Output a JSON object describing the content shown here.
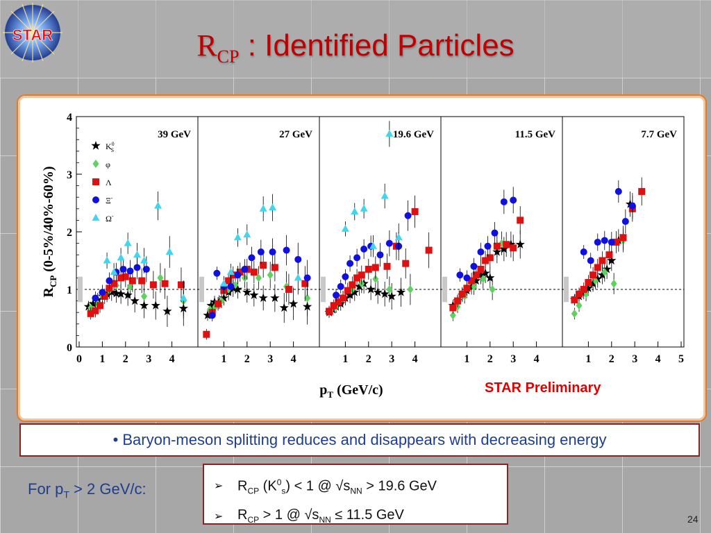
{
  "slide": {
    "title_main": "R",
    "title_sub": "CP",
    "title_rest": " : Identified Particles",
    "logo_text": "STAR",
    "preliminary_label": "STAR Preliminary",
    "bullet": "• Baryon-meson splitting reduces and disappears with decreasing energy",
    "for_pt_prefix": "For p",
    "for_pt_sub": "T",
    "for_pt_suffix": " > 2 GeV/c:",
    "conditions": [
      {
        "arrow": "➢",
        "r": "R",
        "r_sub": "CP",
        "text_a": " (K",
        "k_sup": "0",
        "k_sub": "s",
        "text_b": ") < 1 @ √s",
        "s_sub": "NN",
        "text_c": " > 19.6 GeV"
      },
      {
        "arrow": "➢",
        "r": "R",
        "r_sub": "CP",
        "text_a": " > 1 @ √s",
        "s_sub": "NN",
        "text_c": " ≤ 11.5 GeV"
      }
    ],
    "page_number": "24"
  },
  "chart_data": {
    "type": "scatter",
    "ylabel": "R",
    "ylabel_sub": "CP",
    "ylabel_rest": " (0-5%/40%-60%)",
    "xlabel": "p",
    "xlabel_sub": "T",
    "xlabel_rest": " (GeV/c)",
    "ylim": [
      0,
      4
    ],
    "y_ticks": [
      "0",
      "1",
      "2",
      "3",
      "4"
    ],
    "reference_line": 1,
    "legend": [
      {
        "name": "K",
        "sup": "0",
        "sub": "S",
        "color": "#000000",
        "marker": "star"
      },
      {
        "name": "φ",
        "color": "#5ed15e",
        "marker": "diamond"
      },
      {
        "name": "Λ",
        "color": "#e01010",
        "marker": "square"
      },
      {
        "name": "Ξ",
        "sup": "-",
        "color": "#1010e0",
        "marker": "circle"
      },
      {
        "name": "Ω",
        "sup": "-",
        "color": "#3fd6f0",
        "marker": "triangle"
      }
    ],
    "panels": [
      {
        "energy": "39 GeV",
        "xlim": [
          0,
          5
        ],
        "x_ticks": [
          "0",
          "1",
          "2",
          "3",
          "4"
        ],
        "series": {
          "K0s": [
            [
              0.4,
              0.7
            ],
            [
              0.6,
              0.75
            ],
            [
              0.8,
              0.82
            ],
            [
              1.0,
              0.88
            ],
            [
              1.2,
              0.92
            ],
            [
              1.4,
              0.95
            ],
            [
              1.6,
              0.93
            ],
            [
              1.8,
              0.92
            ],
            [
              2.1,
              0.9
            ],
            [
              2.4,
              0.8
            ],
            [
              2.8,
              0.72
            ],
            [
              3.3,
              0.72
            ],
            [
              3.8,
              0.62
            ],
            [
              4.5,
              0.67
            ]
          ],
          "phi": [
            [
              0.5,
              0.68
            ],
            [
              0.8,
              0.75
            ],
            [
              1.0,
              0.88
            ],
            [
              1.3,
              0.98
            ],
            [
              1.6,
              1.07
            ],
            [
              2.2,
              1.05
            ],
            [
              2.8,
              0.88
            ],
            [
              3.5,
              1.2
            ],
            [
              4.5,
              0.8
            ]
          ],
          "Lambda": [
            [
              0.5,
              0.58
            ],
            [
              0.7,
              0.63
            ],
            [
              0.9,
              0.72
            ],
            [
              1.1,
              0.88
            ],
            [
              1.3,
              1.02
            ],
            [
              1.5,
              1.1
            ],
            [
              1.8,
              1.2
            ],
            [
              2.0,
              1.22
            ],
            [
              2.3,
              1.15
            ],
            [
              2.7,
              1.15
            ],
            [
              3.2,
              1.08
            ],
            [
              3.7,
              1.1
            ],
            [
              4.4,
              1.08
            ]
          ],
          "Xi": [
            [
              0.7,
              0.85
            ],
            [
              1.0,
              0.95
            ],
            [
              1.3,
              1.15
            ],
            [
              1.6,
              1.3
            ],
            [
              1.9,
              1.35
            ],
            [
              2.2,
              1.32
            ],
            [
              2.5,
              1.38
            ],
            [
              2.9,
              1.35
            ]
          ],
          "Omega": [
            [
              1.2,
              1.5
            ],
            [
              1.5,
              1.3
            ],
            [
              1.8,
              1.55
            ],
            [
              2.1,
              1.8
            ],
            [
              2.5,
              1.6
            ],
            [
              2.8,
              1.5
            ],
            [
              3.4,
              2.45
            ],
            [
              3.9,
              1.65
            ],
            [
              4.5,
              0.85
            ]
          ]
        }
      },
      {
        "energy": "27 GeV",
        "xlim": [
          0,
          5
        ],
        "x_ticks": [
          "1",
          "2",
          "3",
          "4"
        ],
        "series": {
          "K0s": [
            [
              0.3,
              0.55
            ],
            [
              0.45,
              0.72
            ],
            [
              0.6,
              0.78
            ],
            [
              0.8,
              0.78
            ],
            [
              1.0,
              0.85
            ],
            [
              1.2,
              0.95
            ],
            [
              1.4,
              1.02
            ],
            [
              1.6,
              1.0
            ],
            [
              2.0,
              0.95
            ],
            [
              2.3,
              0.9
            ],
            [
              2.7,
              0.85
            ],
            [
              3.2,
              0.85
            ],
            [
              3.6,
              0.68
            ],
            [
              4.0,
              0.75
            ],
            [
              4.6,
              0.7
            ]
          ],
          "phi": [
            [
              0.4,
              0.65
            ],
            [
              0.6,
              0.68
            ],
            [
              0.9,
              0.8
            ],
            [
              1.2,
              1.0
            ],
            [
              1.5,
              1.08
            ],
            [
              1.9,
              1.2
            ],
            [
              2.5,
              1.2
            ],
            [
              3.0,
              1.25
            ],
            [
              3.7,
              1.05
            ],
            [
              4.6,
              0.85
            ]
          ],
          "Lambda": [
            [
              0.25,
              0.22
            ],
            [
              0.5,
              0.6
            ],
            [
              0.75,
              0.75
            ],
            [
              1.0,
              0.98
            ],
            [
              1.2,
              1.15
            ],
            [
              1.4,
              1.25
            ],
            [
              1.7,
              1.3
            ],
            [
              2.0,
              1.35
            ],
            [
              2.3,
              1.3
            ],
            [
              2.7,
              1.42
            ],
            [
              3.2,
              1.38
            ],
            [
              3.8,
              1.0
            ],
            [
              4.5,
              1.1
            ]
          ],
          "Xi": [
            [
              0.5,
              0.55
            ],
            [
              0.7,
              1.28
            ],
            [
              1.0,
              1.05
            ],
            [
              1.3,
              1.05
            ],
            [
              1.6,
              1.25
            ],
            [
              1.9,
              1.35
            ],
            [
              2.2,
              1.55
            ],
            [
              2.6,
              1.65
            ],
            [
              3.1,
              1.65
            ],
            [
              3.7,
              1.68
            ],
            [
              4.2,
              1.52
            ],
            [
              4.6,
              1.2
            ]
          ],
          "Omega": [
            [
              1.0,
              1.1
            ],
            [
              1.3,
              1.3
            ],
            [
              1.6,
              1.9
            ],
            [
              2.0,
              1.95
            ],
            [
              2.7,
              2.4
            ],
            [
              3.1,
              2.42
            ],
            [
              4.2,
              1.2
            ]
          ]
        }
      },
      {
        "energy": "19.6 GeV",
        "xlim": [
          0,
          5
        ],
        "x_ticks": [
          "1",
          "2",
          "3",
          "4"
        ],
        "series": {
          "K0s": [
            [
              0.3,
              0.6
            ],
            [
              0.45,
              0.65
            ],
            [
              0.6,
              0.7
            ],
            [
              0.8,
              0.75
            ],
            [
              1.0,
              0.85
            ],
            [
              1.2,
              0.9
            ],
            [
              1.4,
              0.95
            ],
            [
              1.6,
              1.05
            ],
            [
              1.8,
              1.1
            ],
            [
              2.1,
              1.0
            ],
            [
              2.4,
              0.95
            ],
            [
              2.7,
              0.92
            ],
            [
              3.0,
              0.88
            ],
            [
              3.4,
              0.95
            ]
          ],
          "phi": [
            [
              0.4,
              0.65
            ],
            [
              0.6,
              0.7
            ],
            [
              0.9,
              0.85
            ],
            [
              1.3,
              1.0
            ],
            [
              1.7,
              1.1
            ],
            [
              2.3,
              1.18
            ],
            [
              2.9,
              1.0
            ],
            [
              3.8,
              1.0
            ]
          ],
          "Lambda": [
            [
              0.3,
              0.62
            ],
            [
              0.5,
              0.72
            ],
            [
              0.7,
              0.78
            ],
            [
              0.9,
              0.85
            ],
            [
              1.1,
              0.98
            ],
            [
              1.3,
              1.08
            ],
            [
              1.5,
              1.2
            ],
            [
              1.7,
              1.25
            ],
            [
              2.0,
              1.35
            ],
            [
              2.3,
              1.38
            ],
            [
              2.8,
              1.4
            ],
            [
              3.2,
              1.75
            ],
            [
              3.6,
              1.45
            ],
            [
              4.0,
              2.35
            ],
            [
              4.6,
              1.68
            ]
          ],
          "Xi": [
            [
              0.6,
              0.9
            ],
            [
              0.8,
              1.05
            ],
            [
              1.0,
              1.22
            ],
            [
              1.2,
              1.45
            ],
            [
              1.5,
              1.55
            ],
            [
              1.8,
              1.7
            ],
            [
              2.1,
              1.75
            ],
            [
              2.5,
              1.6
            ],
            [
              2.9,
              1.8
            ],
            [
              3.3,
              1.75
            ],
            [
              3.7,
              2.28
            ]
          ],
          "Omega": [
            [
              1.0,
              2.05
            ],
            [
              1.4,
              2.35
            ],
            [
              1.8,
              2.4
            ],
            [
              2.2,
              1.75
            ],
            [
              2.7,
              2.62
            ],
            [
              2.9,
              3.7
            ],
            [
              3.3,
              1.9
            ]
          ]
        }
      },
      {
        "energy": "11.5 GeV",
        "xlim": [
          0,
          5
        ],
        "x_ticks": [
          "1",
          "2",
          "3",
          "4"
        ],
        "series": {
          "K0s": [
            [
              0.4,
              0.72
            ],
            [
              0.6,
              0.8
            ],
            [
              0.8,
              0.9
            ],
            [
              1.0,
              0.98
            ],
            [
              1.2,
              1.05
            ],
            [
              1.4,
              1.15
            ],
            [
              1.6,
              1.25
            ],
            [
              1.8,
              1.28
            ],
            [
              2.0,
              1.2
            ],
            [
              2.3,
              1.65
            ],
            [
              2.6,
              1.7
            ],
            [
              2.9,
              1.78
            ],
            [
              3.3,
              1.78
            ]
          ],
          "phi": [
            [
              0.4,
              0.55
            ],
            [
              0.6,
              0.7
            ],
            [
              0.9,
              0.88
            ],
            [
              1.3,
              1.05
            ],
            [
              1.7,
              1.18
            ],
            [
              2.1,
              1.0
            ],
            [
              2.5,
              1.8
            ]
          ],
          "Lambda": [
            [
              0.4,
              0.68
            ],
            [
              0.6,
              0.8
            ],
            [
              0.8,
              0.92
            ],
            [
              1.0,
              1.02
            ],
            [
              1.2,
              1.15
            ],
            [
              1.4,
              1.25
            ],
            [
              1.6,
              1.35
            ],
            [
              1.8,
              1.5
            ],
            [
              2.0,
              1.55
            ],
            [
              2.3,
              1.75
            ],
            [
              2.7,
              1.78
            ],
            [
              3.0,
              1.72
            ],
            [
              3.3,
              2.2
            ]
          ],
          "Xi": [
            [
              0.7,
              1.25
            ],
            [
              1.0,
              1.2
            ],
            [
              1.3,
              1.4
            ],
            [
              1.6,
              1.65
            ],
            [
              1.9,
              1.75
            ],
            [
              2.2,
              1.98
            ],
            [
              2.6,
              2.52
            ],
            [
              3.0,
              2.55
            ]
          ],
          "Omega": []
        }
      },
      {
        "energy": "7.7 GeV",
        "xlim": [
          0,
          5
        ],
        "x_ticks": [
          "1",
          "2",
          "3",
          "4",
          "5"
        ],
        "series": {
          "K0s": [
            [
              0.4,
              0.82
            ],
            [
              0.6,
              0.88
            ],
            [
              0.8,
              0.95
            ],
            [
              1.0,
              1.02
            ],
            [
              1.2,
              1.1
            ],
            [
              1.4,
              1.18
            ],
            [
              1.6,
              1.25
            ],
            [
              1.8,
              1.35
            ],
            [
              2.0,
              1.5
            ],
            [
              2.3,
              1.85
            ],
            [
              2.8,
              2.48
            ]
          ],
          "phi": [
            [
              0.4,
              0.58
            ],
            [
              0.6,
              0.72
            ],
            [
              0.9,
              0.92
            ],
            [
              1.3,
              1.15
            ],
            [
              1.7,
              1.3
            ],
            [
              2.1,
              1.1
            ],
            [
              2.5,
              1.85
            ]
          ],
          "Lambda": [
            [
              0.4,
              0.82
            ],
            [
              0.6,
              0.92
            ],
            [
              0.8,
              1.0
            ],
            [
              1.0,
              1.12
            ],
            [
              1.2,
              1.25
            ],
            [
              1.4,
              1.38
            ],
            [
              1.6,
              1.5
            ],
            [
              1.9,
              1.6
            ],
            [
              2.2,
              1.82
            ],
            [
              2.5,
              1.9
            ],
            [
              2.9,
              2.4
            ],
            [
              3.3,
              2.7
            ]
          ],
          "Xi": [
            [
              0.8,
              1.65
            ],
            [
              1.1,
              1.5
            ],
            [
              1.4,
              1.82
            ],
            [
              1.7,
              1.85
            ],
            [
              2.0,
              1.82
            ],
            [
              2.3,
              2.7
            ],
            [
              2.6,
              2.18
            ],
            [
              2.9,
              2.45
            ]
          ],
          "Omega": []
        }
      }
    ]
  }
}
